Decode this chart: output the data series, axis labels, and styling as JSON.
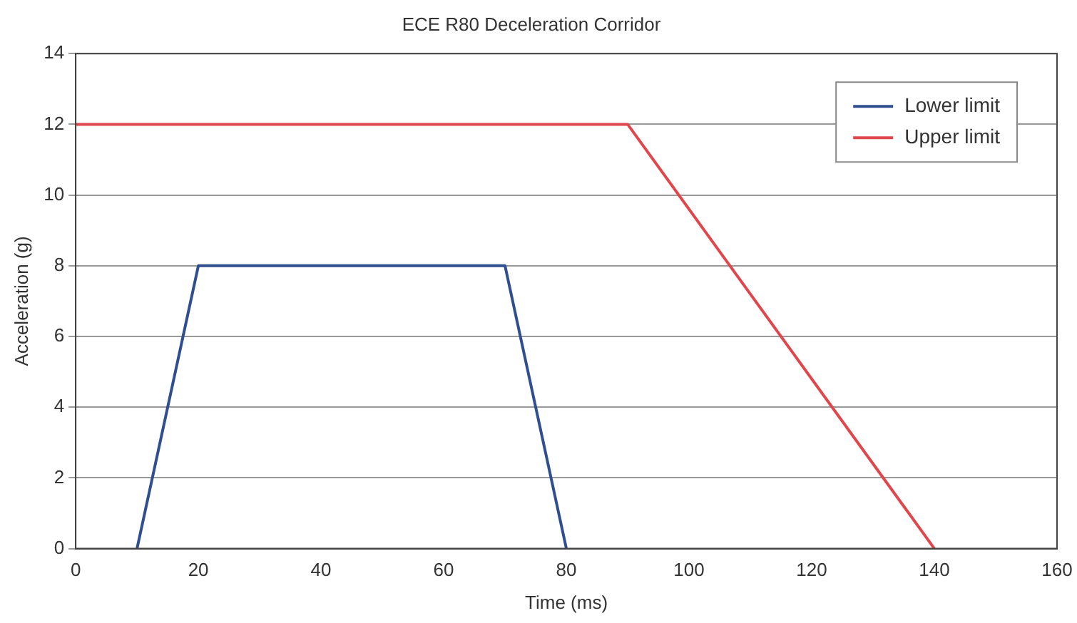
{
  "chart_data": {
    "type": "line",
    "title": "ECE R80 Deceleration Corridor",
    "xlabel": "Time (ms)",
    "ylabel": "Acceleration (g)",
    "series": [
      {
        "name": "Lower limit",
        "color": "#2f4f8f",
        "x": [
          10,
          20,
          70,
          80
        ],
        "values": [
          0,
          8,
          8,
          0
        ]
      },
      {
        "name": "Upper limit",
        "color": "#e0474c",
        "x": [
          0,
          90,
          140
        ],
        "values": [
          12,
          12,
          0
        ]
      }
    ],
    "xlim": [
      0,
      160
    ],
    "xticks": [
      0,
      20,
      40,
      60,
      80,
      100,
      120,
      140,
      160
    ],
    "ylim": [
      0,
      14
    ],
    "yticks": [
      0,
      2,
      4,
      6,
      8,
      10,
      12,
      14
    ],
    "grid": "y",
    "legend": "top right",
    "marker": "none",
    "line_style": "solid"
  }
}
